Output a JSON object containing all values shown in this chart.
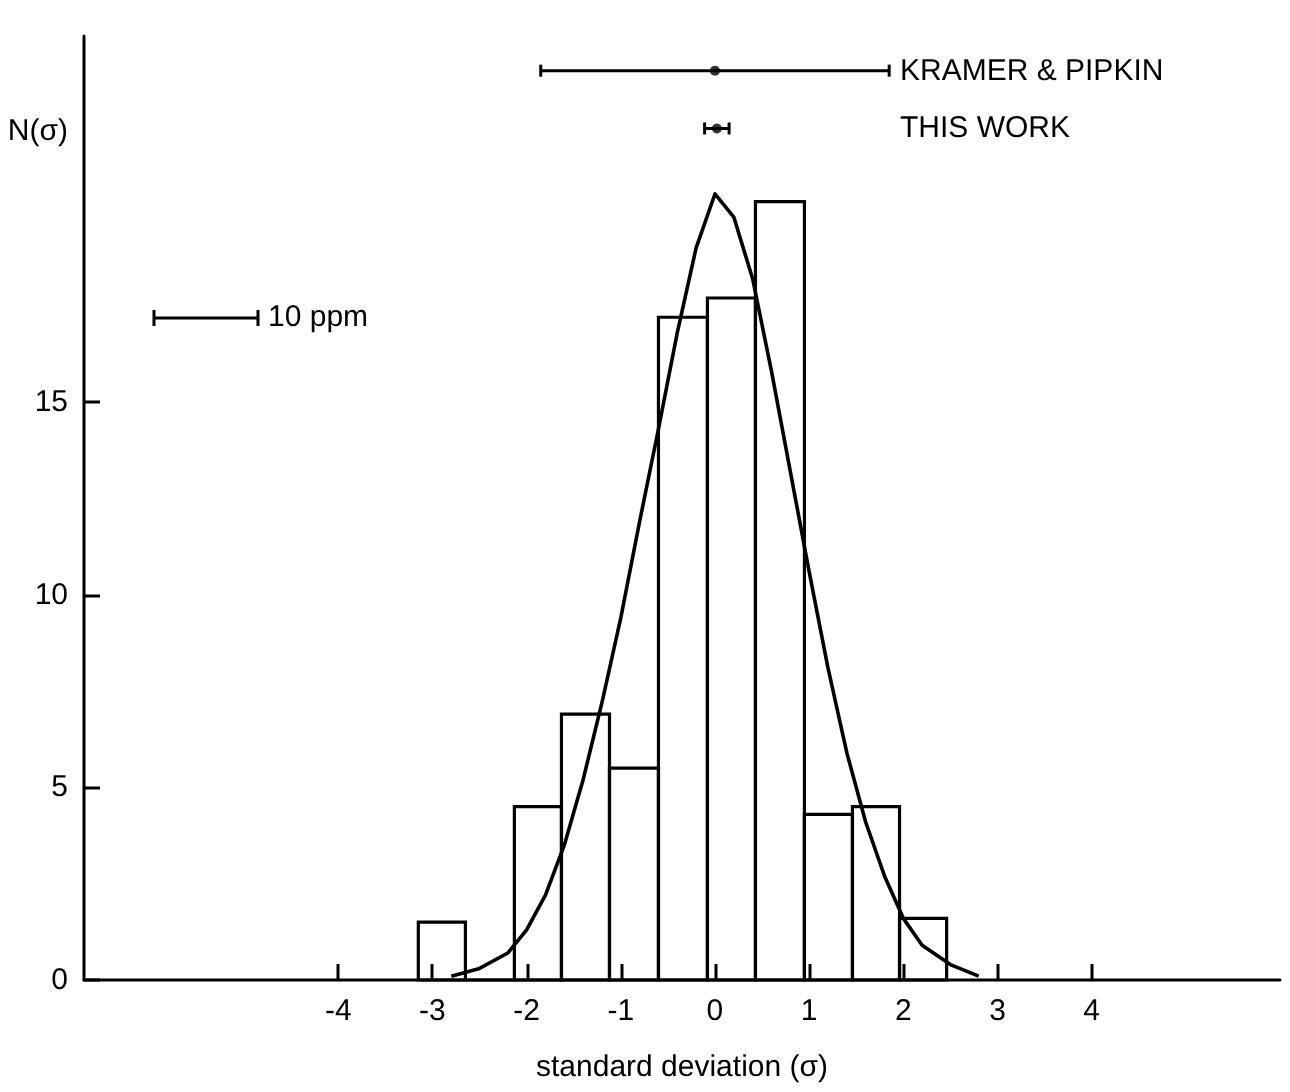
{
  "chart_data": {
    "type": "histogram",
    "xlabel": "standard deviation (σ)",
    "ylabel": "N(σ)",
    "annotations": [
      "10 ppm"
    ],
    "xlim": [
      -6.7,
      6.0
    ],
    "xticks": [
      -4,
      -3,
      -2,
      -1,
      0,
      1,
      2,
      3,
      4
    ],
    "ylim": [
      0,
      24.5
    ],
    "yticks": [
      0,
      5,
      10,
      15
    ],
    "grid": false,
    "legend": false,
    "series": [
      {
        "color": "#000000",
        "bins": [
          -3.15,
          -2.65,
          -2.13,
          -1.63,
          -1.12,
          -0.6,
          -0.08,
          0.43,
          0.95,
          1.46,
          1.96,
          2.46
        ],
        "values": [
          1.5,
          0,
          4.5,
          6.9,
          5.5,
          17.2,
          17.7,
          20.2,
          4.3,
          4.5,
          1.6
        ]
      },
      {
        "type": "line",
        "color": "#000000",
        "marker": "none",
        "x": [
          -2.8,
          -2.5,
          -2.2,
          -2.0,
          -1.8,
          -1.6,
          -1.4,
          -1.2,
          -1.0,
          -0.8,
          -0.6,
          -0.4,
          -0.2,
          0,
          0.2,
          0.4,
          0.6,
          0.8,
          1.0,
          1.2,
          1.4,
          1.6,
          1.8,
          2.0,
          2.2,
          2.5,
          2.8
        ],
        "values": [
          0.1,
          0.3,
          0.7,
          1.3,
          2.2,
          3.5,
          5.2,
          7.2,
          9.4,
          11.9,
          14.3,
          16.8,
          19.0,
          20.4,
          19.8,
          18.2,
          15.8,
          13.2,
          10.6,
          8.1,
          5.9,
          4.1,
          2.7,
          1.6,
          0.9,
          0.4,
          0.1
        ]
      },
      {
        "type": "scatter",
        "name": "KRAMER & PIPKIN",
        "color": "#000000",
        "marker": "circle",
        "x": [
          0
        ],
        "values": [
          23.6
        ],
        "xerrors": [
          1.85
        ]
      },
      {
        "type": "scatter",
        "name": "THIS WORK",
        "color": "#000000",
        "marker": "circle",
        "x": [
          0.02
        ],
        "values": [
          22.1
        ],
        "xerrors": [
          0.13
        ]
      }
    ]
  }
}
